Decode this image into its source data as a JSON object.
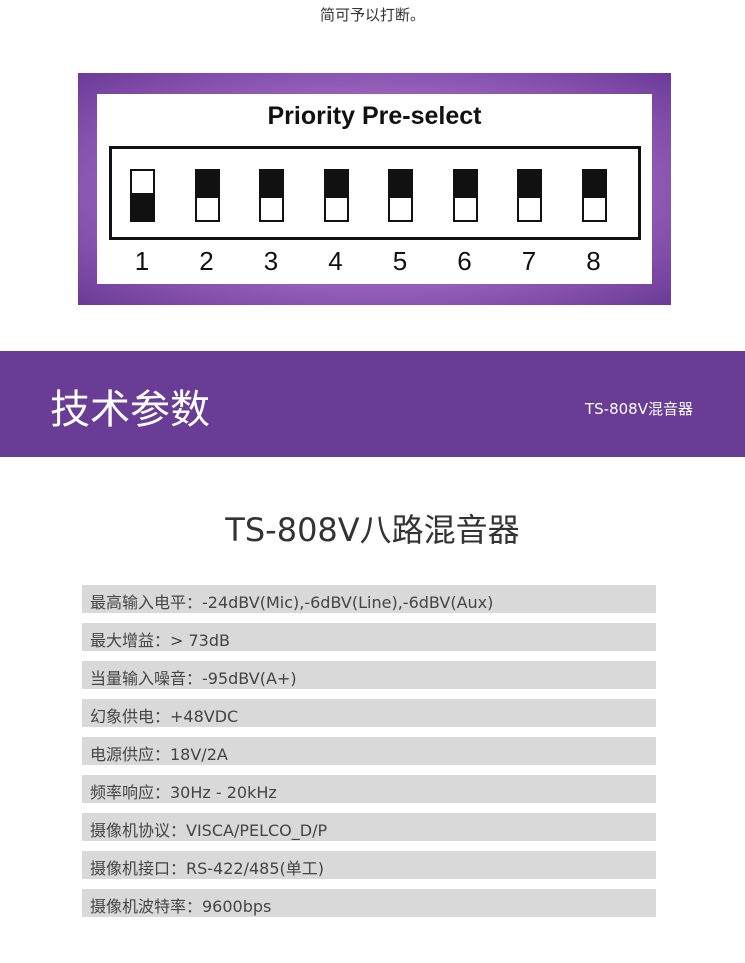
{
  "top_text": "简可予以打断。",
  "priority": {
    "title": "Priority Pre-select",
    "switches": [
      {
        "label": "1",
        "state": "down"
      },
      {
        "label": "2",
        "state": "up"
      },
      {
        "label": "3",
        "state": "up"
      },
      {
        "label": "4",
        "state": "up"
      },
      {
        "label": "5",
        "state": "up"
      },
      {
        "label": "6",
        "state": "up"
      },
      {
        "label": "7",
        "state": "up"
      },
      {
        "label": "8",
        "state": "up"
      }
    ]
  },
  "section": {
    "title": "技术参数",
    "subtitle": "TS-808V混音器",
    "color": "#693c95"
  },
  "model": "TS-808V八路混音器",
  "specs": [
    "最高输入电平：-24dBV(Mic),-6dBV(Line),-6dBV(Aux)",
    "最大增益：> 73dB",
    "当量输入噪音：-95dBV(A+)",
    "幻象供电：+48VDC",
    "电源供应：18V/2A",
    "频率响应：30Hz - 20kHz",
    "摄像机协议：VISCA/PELCO_D/P",
    "摄像机接口：RS-422/485(单工)",
    "摄像机波特率：9600bps"
  ]
}
